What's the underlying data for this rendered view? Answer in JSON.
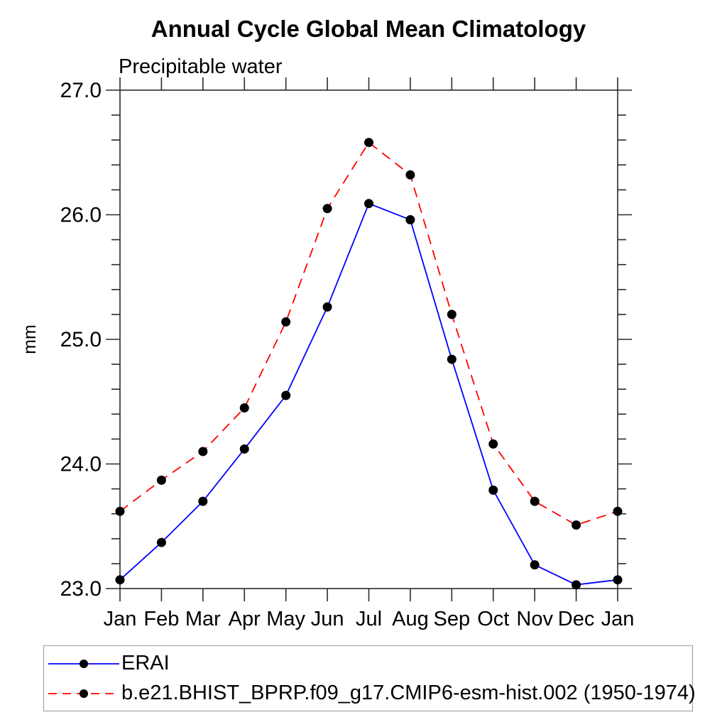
{
  "chart_data": {
    "type": "line",
    "title": "Annual Cycle Global Mean Climatology",
    "subtitle": "Precipitable water",
    "ylabel": "mm",
    "x_categories": [
      "Jan",
      "Feb",
      "Mar",
      "Apr",
      "May",
      "Jun",
      "Jul",
      "Aug",
      "Sep",
      "Oct",
      "Nov",
      "Dec",
      "Jan"
    ],
    "ylim": [
      23.0,
      27.0
    ],
    "y_major_ticks": [
      23.0,
      24.0,
      25.0,
      26.0,
      27.0
    ],
    "y_major_tick_labels": [
      "23.0",
      "24.0",
      "25.0",
      "26.0",
      "27.0"
    ],
    "y_minor_step": 0.2,
    "grid": false,
    "legend_position": "bottom-left-box",
    "series": [
      {
        "name": "ERAI",
        "color": "#0000ff",
        "line_style": "solid",
        "marker": "filled-circle",
        "marker_color": "#000000",
        "values": [
          23.07,
          23.37,
          23.7,
          24.12,
          24.55,
          25.26,
          26.09,
          25.96,
          24.84,
          23.79,
          23.19,
          23.03,
          23.07
        ]
      },
      {
        "name": "b.e21.BHIST_BPRP.f09_g17.CMIP6-esm-hist.002 (1950-1974)",
        "color": "#ff0000",
        "line_style": "dashed",
        "marker": "filled-circle",
        "marker_color": "#000000",
        "values": [
          23.62,
          23.87,
          24.1,
          24.45,
          25.14,
          26.05,
          26.58,
          26.32,
          25.2,
          24.16,
          23.7,
          23.51,
          23.62
        ]
      }
    ]
  },
  "colors": {
    "axis": "#2a2a2a",
    "text": "#000000",
    "background": "#ffffff",
    "legend_border": "#9a9a9a"
  }
}
